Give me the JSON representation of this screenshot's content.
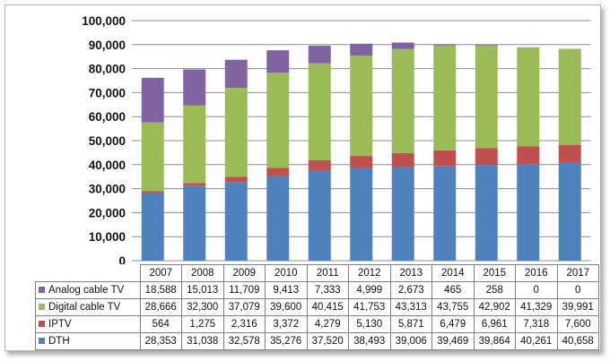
{
  "chart_data": {
    "type": "bar",
    "stacked": true,
    "categories": [
      "2007",
      "2008",
      "2009",
      "2010",
      "2011",
      "2012",
      "2013",
      "2014",
      "2015",
      "2016",
      "2017"
    ],
    "ylim": [
      0,
      100000
    ],
    "yticks": [
      "0",
      "10,000",
      "20,000",
      "30,000",
      "40,000",
      "50,000",
      "60,000",
      "70,000",
      "80,000",
      "90,000",
      "100,000"
    ],
    "grid": true,
    "legend_placement": "data-table-left",
    "series": [
      {
        "name": "Analog cable TV",
        "color": "#8064a2",
        "values": [
          18588,
          15013,
          11709,
          9413,
          7333,
          4999,
          2673,
          465,
          258,
          0,
          0
        ],
        "labels": [
          "18,588",
          "15,013",
          "11,709",
          "9,413",
          "7,333",
          "4,999",
          "2,673",
          "465",
          "258",
          "0",
          "0"
        ]
      },
      {
        "name": "Digital cable TV",
        "color": "#9bbb59",
        "values": [
          28666,
          32300,
          37079,
          39600,
          40415,
          41753,
          43313,
          43755,
          42902,
          41329,
          39991
        ],
        "labels": [
          "28,666",
          "32,300",
          "37,079",
          "39,600",
          "40,415",
          "41,753",
          "43,313",
          "43,755",
          "42,902",
          "41,329",
          "39,991"
        ]
      },
      {
        "name": "IPTV",
        "color": "#c0504d",
        "values": [
          564,
          1275,
          2316,
          3372,
          4279,
          5130,
          5871,
          6479,
          6961,
          7318,
          7600
        ],
        "labels": [
          "564",
          "1,275",
          "2,316",
          "3,372",
          "4,279",
          "5,130",
          "5,871",
          "6,479",
          "6,961",
          "7,318",
          "7,600"
        ]
      },
      {
        "name": "DTH",
        "color": "#4f81bd",
        "values": [
          28353,
          31038,
          32578,
          35276,
          37520,
          38493,
          39006,
          39469,
          39864,
          40261,
          40658
        ],
        "labels": [
          "28,353",
          "31,038",
          "32,578",
          "35,276",
          "37,520",
          "38,493",
          "39,006",
          "39,469",
          "39,864",
          "40,261",
          "40,658"
        ]
      }
    ],
    "stack_order_bottom_to_top": [
      "DTH",
      "IPTV",
      "Digital cable TV",
      "Analog cable TV"
    ]
  }
}
